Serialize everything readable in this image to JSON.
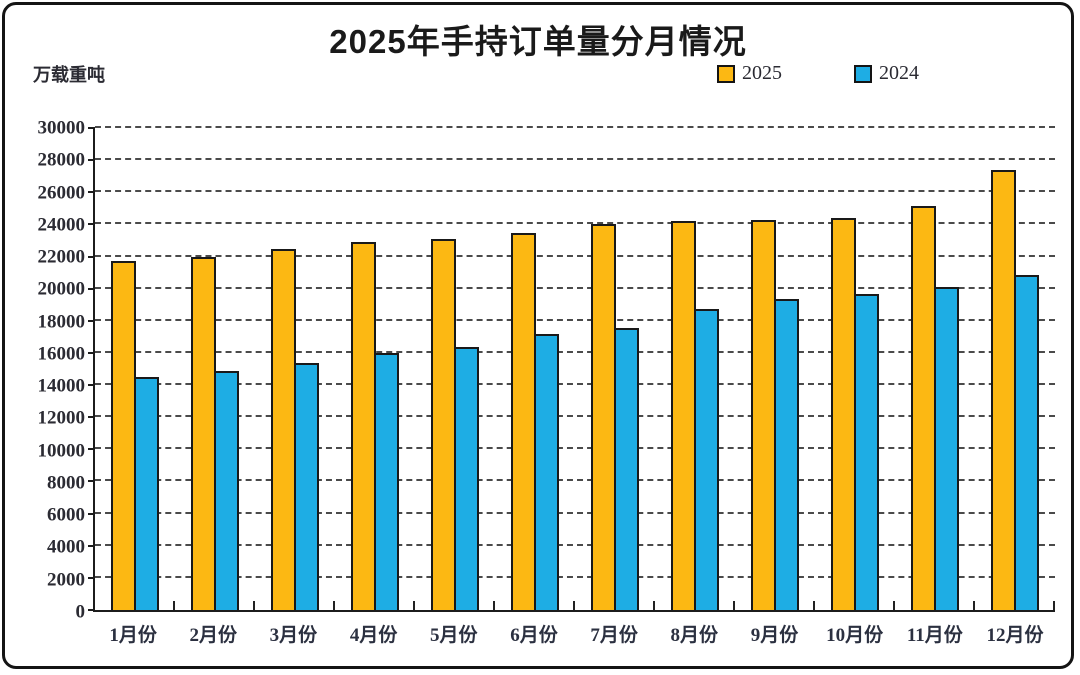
{
  "title": "2025年手持订单量分月情况",
  "unit_label": "万载重吨",
  "legend": [
    {
      "label": "2025",
      "color": "#FCB813"
    },
    {
      "label": "2024",
      "color": "#1EADE4"
    }
  ],
  "colors": {
    "bar_stroke": "#191919",
    "axis": "#1c1c1c",
    "grid": "#4a4a4a"
  },
  "chart_data": {
    "type": "bar",
    "title": "2025年手持订单量分月情况",
    "ylabel": "万载重吨",
    "xlabel": "",
    "categories": [
      "1月份",
      "2月份",
      "3月份",
      "4月份",
      "5月份",
      "6月份",
      "7月份",
      "8月份",
      "9月份",
      "10月份",
      "11月份",
      "12月份"
    ],
    "series": [
      {
        "name": "2025",
        "color": "#FCB813",
        "values": [
          21700,
          22000,
          22500,
          22900,
          23100,
          23450,
          24000,
          24200,
          24250,
          24400,
          25150,
          27400
        ]
      },
      {
        "name": "2024",
        "color": "#1EADE4",
        "values": [
          14500,
          14900,
          15350,
          16000,
          16400,
          17150,
          17550,
          18750,
          19350,
          19700,
          20100,
          20870
        ]
      }
    ],
    "ylim": [
      0,
      30000
    ],
    "ytick_step": 2000,
    "grid": "horizontal-dashed",
    "legend_position": "top-right"
  }
}
